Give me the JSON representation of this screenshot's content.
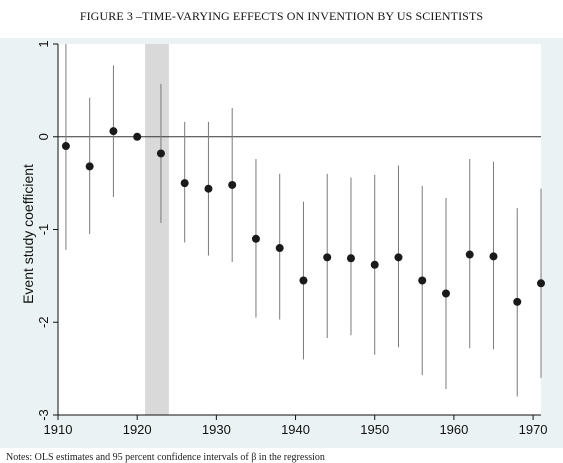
{
  "figure_title": "FIGURE 3 –TIME-VARYING EFFECTS ON INVENTION BY US SCIENTISTS",
  "note": "Notes: OLS estimates and 95 percent confidence intervals of β in the regression",
  "colors": {
    "background_panel": "#eaf2f3",
    "plot_background": "#ffffff",
    "markers": "#1a1a1a",
    "ci_lines": "#7a7a7a",
    "shaded_band": "#d9d9d9",
    "zero_line": "#333333"
  },
  "chart_data": {
    "type": "scatter",
    "title": "",
    "xlabel": "",
    "ylabel": "Event study coefficient",
    "xlim": [
      1910,
      1971
    ],
    "ylim": [
      -3,
      1
    ],
    "xticks": [
      1910,
      1920,
      1930,
      1940,
      1950,
      1960,
      1970
    ],
    "yticks": [
      1,
      0,
      -1,
      -2,
      -3
    ],
    "grid": false,
    "reference_line_y": 0,
    "shaded_band_x": [
      1921,
      1924
    ],
    "series": [
      {
        "x": [
          1911,
          1914,
          1917,
          1920,
          1923,
          1926,
          1929,
          1932,
          1935,
          1938,
          1941,
          1944,
          1947,
          1950,
          1953,
          1956,
          1959,
          1962,
          1965,
          1968,
          1971
        ],
        "y": [
          -0.1,
          -0.32,
          0.06,
          0.0,
          -0.18,
          -0.5,
          -0.56,
          -0.52,
          -1.1,
          -1.2,
          -1.55,
          -1.3,
          -1.31,
          -1.38,
          -1.3,
          -1.55,
          -1.69,
          -1.27,
          -1.29,
          -1.78,
          -1.58
        ],
        "ci_low": [
          -1.22,
          -1.05,
          -0.65,
          null,
          -0.93,
          -1.14,
          -1.28,
          -1.35,
          -1.95,
          -1.97,
          -2.4,
          -2.17,
          -2.14,
          -2.35,
          -2.27,
          -2.57,
          -2.72,
          -2.28,
          -2.29,
          -2.8,
          -2.6
        ],
        "ci_high": [
          1.0,
          0.42,
          0.77,
          null,
          0.57,
          0.16,
          0.16,
          0.31,
          -0.24,
          -0.4,
          -0.7,
          -0.4,
          -0.44,
          -0.41,
          -0.31,
          -0.53,
          -0.66,
          -0.24,
          -0.27,
          -0.77,
          -0.56
        ]
      }
    ]
  }
}
